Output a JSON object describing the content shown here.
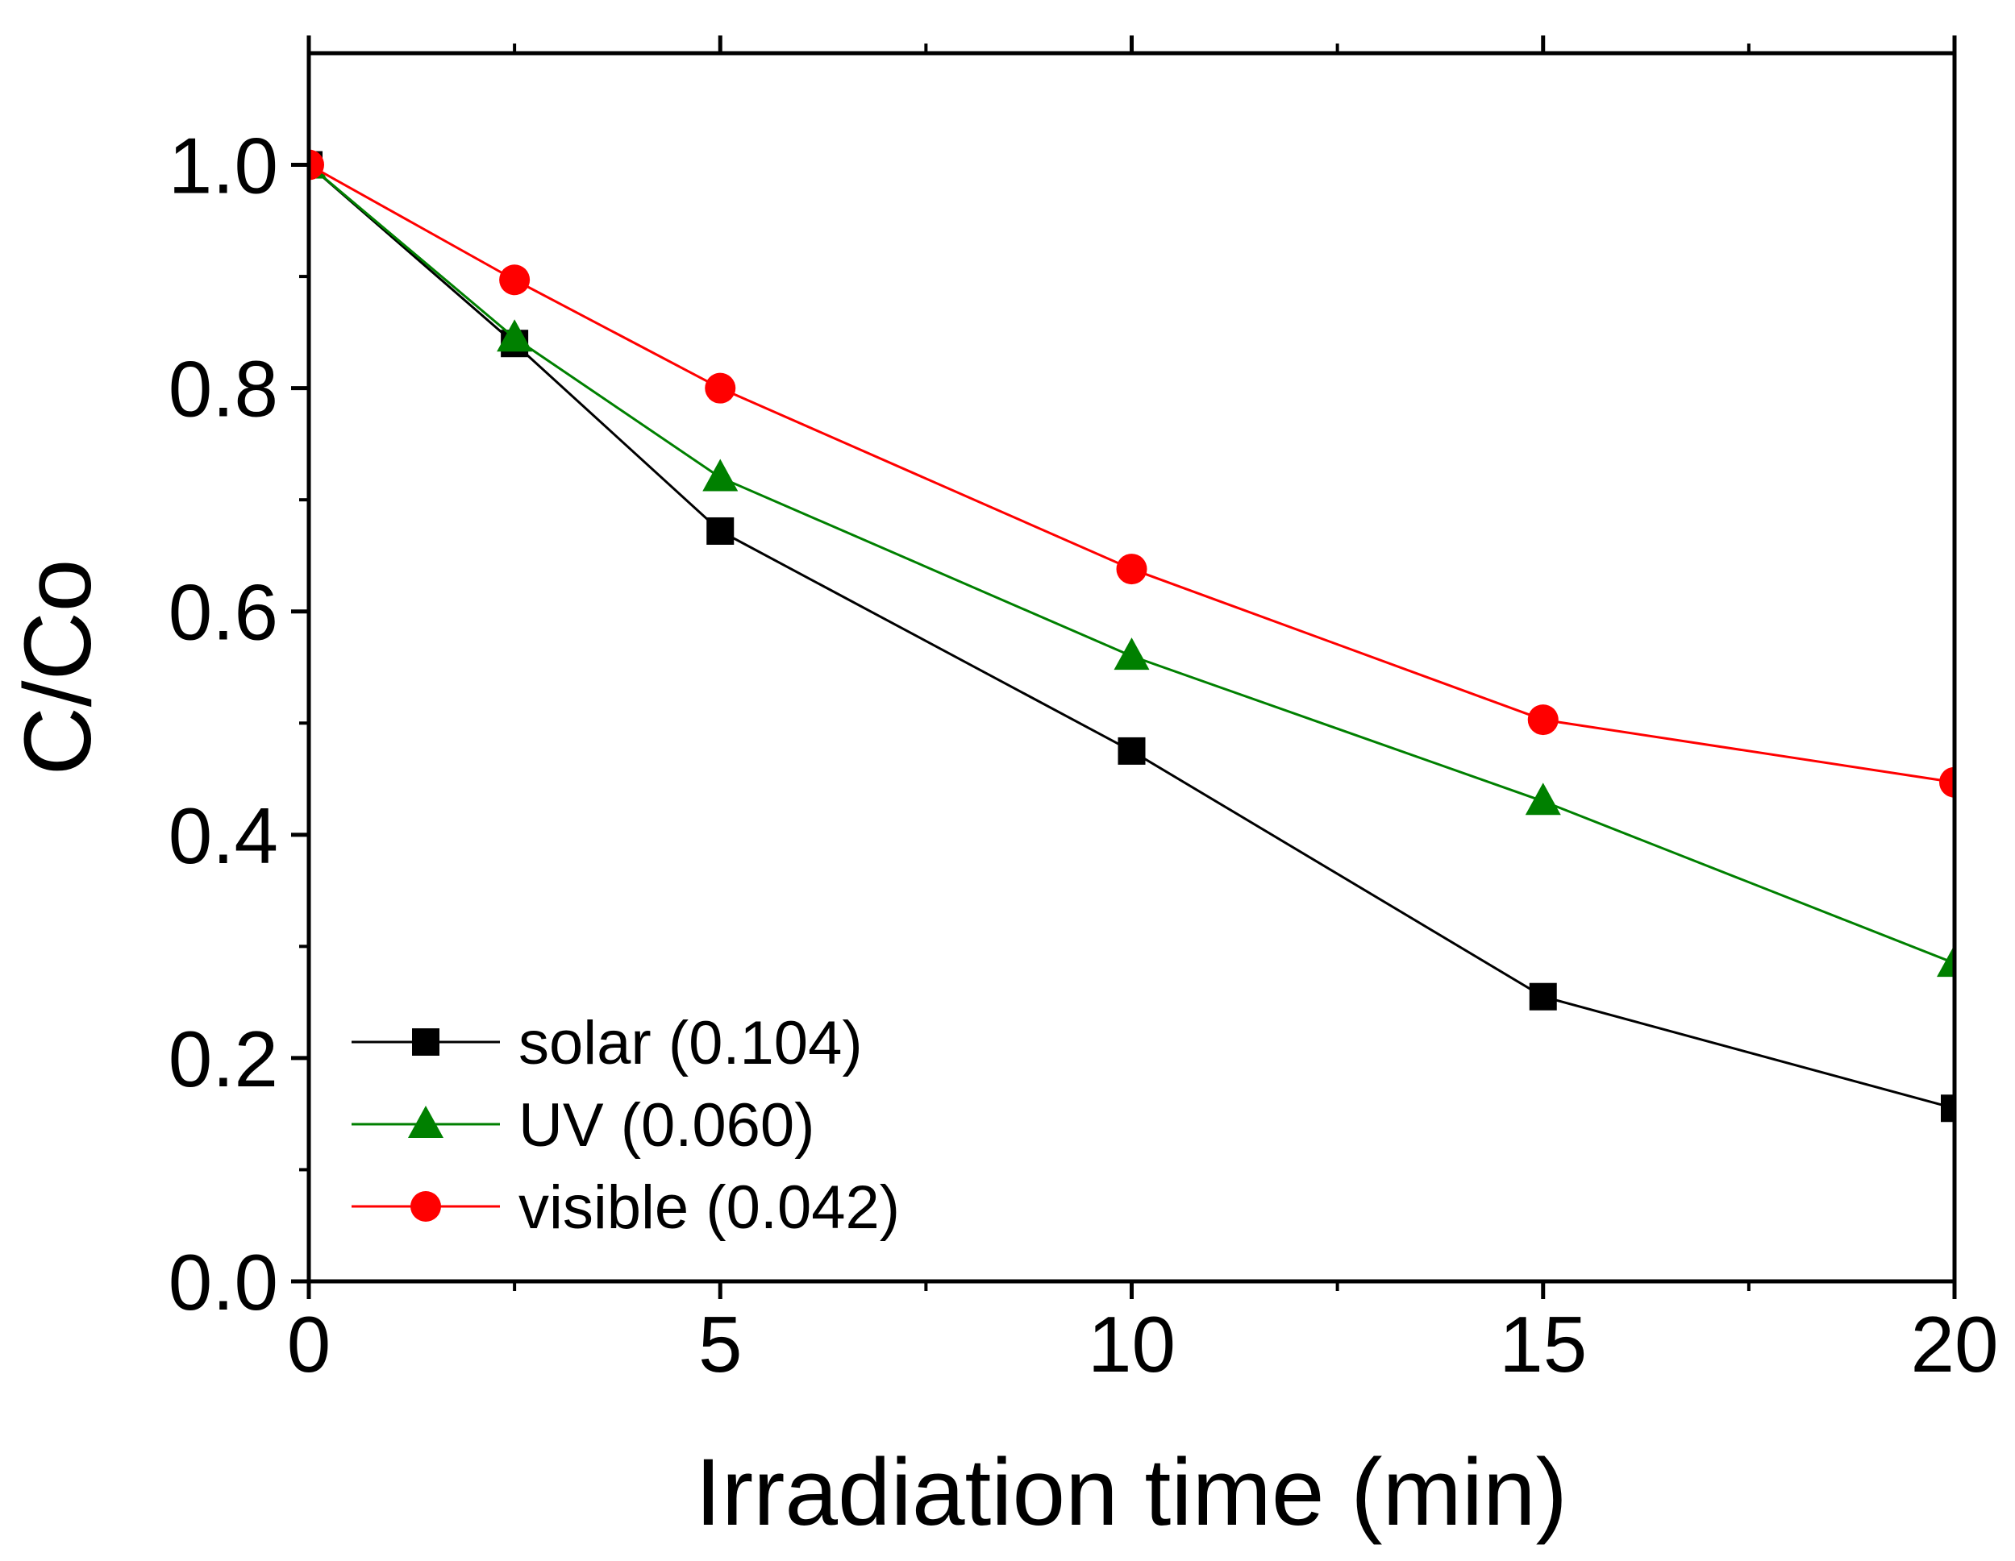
{
  "chart_data": {
    "type": "line",
    "title": "",
    "xlabel": "Irradiation time (min)",
    "ylabel": "C/Co",
    "xlim": [
      0,
      20
    ],
    "ylim": [
      0,
      1.1
    ],
    "xticks": [
      0,
      5,
      10,
      15,
      20
    ],
    "xtick_labels": [
      "0",
      "5",
      "10",
      "15",
      "20"
    ],
    "yticks": [
      0.0,
      0.2,
      0.4,
      0.6,
      0.8,
      1.0
    ],
    "ytick_labels": [
      "0.0",
      "0.2",
      "0.4",
      "0.6",
      "0.8",
      "1.0"
    ],
    "grid": false,
    "legend_position": "bottom-left",
    "series": [
      {
        "name": "solar (0.104)",
        "marker": "square",
        "color": "#000000",
        "x": [
          0,
          2.5,
          5,
          10,
          15,
          20
        ],
        "y": [
          1.0,
          0.84,
          0.672,
          0.475,
          0.255,
          0.155
        ]
      },
      {
        "name": "UV (0.060)",
        "marker": "triangle",
        "color": "#008000",
        "x": [
          0,
          2.5,
          5,
          10,
          15,
          20
        ],
        "y": [
          1.0,
          0.845,
          0.72,
          0.56,
          0.43,
          0.285
        ]
      },
      {
        "name": "visible (0.042)",
        "marker": "circle",
        "color": "#ff0000",
        "x": [
          0,
          2.5,
          5,
          10,
          15,
          20
        ],
        "y": [
          1.0,
          0.897,
          0.8,
          0.638,
          0.503,
          0.447
        ]
      }
    ]
  }
}
